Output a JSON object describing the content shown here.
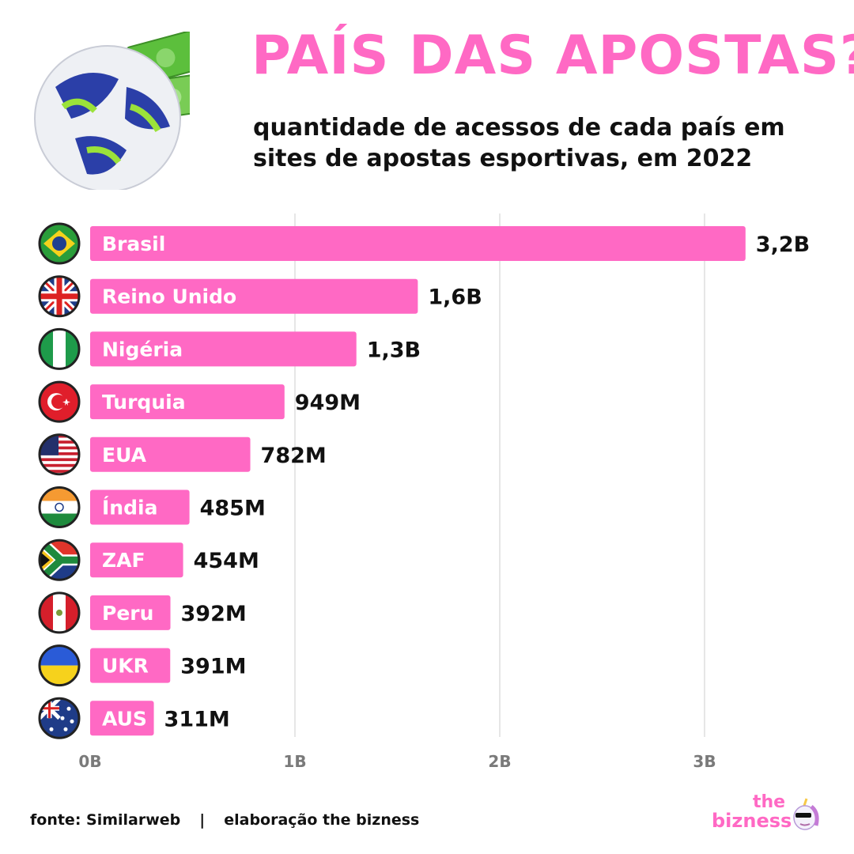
{
  "header": {
    "title": "PAÍS DAS APOSTAS?",
    "subtitle_line1": "quantidade de acessos de cada país em",
    "subtitle_line2": "sites de apostas esportivas, em 2022"
  },
  "footer": {
    "source": "fonte: Similarweb",
    "separator": "|",
    "credit": "elaboração the bizness"
  },
  "brand": {
    "line1": "the",
    "line2": "bizness"
  },
  "colors": {
    "bar": "#ff69c4",
    "title": "#ff69c4",
    "text": "#111111",
    "grid": "#e6e6e6",
    "tick": "#7a7a7a"
  },
  "chart_data": {
    "type": "bar",
    "orientation": "horizontal",
    "categories": [
      "Brasil",
      "Reino Unido",
      "Nigéria",
      "Turquia",
      "EUA",
      "Índia",
      "ZAF",
      "Peru",
      "UKR",
      "AUS"
    ],
    "values": [
      3.2,
      1.6,
      1.3,
      0.949,
      0.782,
      0.485,
      0.454,
      0.392,
      0.391,
      0.311
    ],
    "value_labels": [
      "3,2B",
      "1,6B",
      "1,3B",
      "949M",
      "782M",
      "485M",
      "454M",
      "392M",
      "391M",
      "311M"
    ],
    "flags": [
      "brazil-flag-icon",
      "uk-flag-icon",
      "nigeria-flag-icon",
      "turkey-flag-icon",
      "usa-flag-icon",
      "india-flag-icon",
      "south-africa-flag-icon",
      "peru-flag-icon",
      "ukraine-flag-icon",
      "australia-flag-icon"
    ],
    "value_unit": "billions",
    "xlim": [
      0,
      3.4
    ],
    "xticks": [
      0,
      1,
      2,
      3
    ],
    "xtick_labels": [
      "0B",
      "1B",
      "2B",
      "3B"
    ],
    "grid": true
  }
}
